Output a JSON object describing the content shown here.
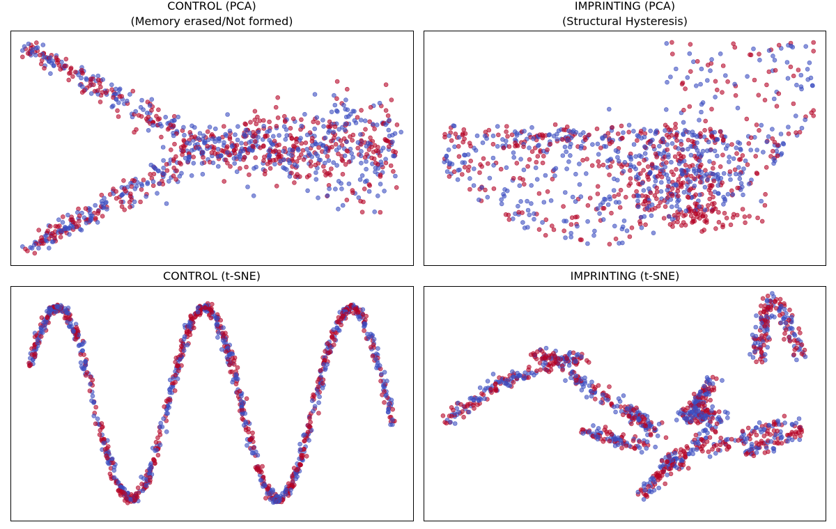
{
  "colors": {
    "red": "#b40426",
    "blue": "#3b4cc0"
  },
  "chart_data": [
    {
      "type": "scatter",
      "title": "CONTROL (PCA)",
      "subtitle": "(Memory erased/Not formed)",
      "xlabel": "",
      "ylabel": "",
      "axes": "hidden",
      "xlim": [
        0,
        100
      ],
      "ylim": [
        0,
        100
      ],
      "series": [
        {
          "name": "class-blue",
          "color": "#3b4cc0",
          "n": 520,
          "shape": "chevron"
        },
        {
          "name": "class-red",
          "color": "#b40426",
          "n": 520,
          "shape": "chevron"
        }
      ]
    },
    {
      "type": "scatter",
      "title": "IMPRINTING (PCA)",
      "subtitle": "(Structural Hysteresis)",
      "xlabel": "",
      "ylabel": "",
      "axes": "hidden",
      "xlim": [
        0,
        100
      ],
      "ylim": [
        0,
        100
      ],
      "series": [
        {
          "name": "class-blue",
          "color": "#3b4cc0",
          "n": 520,
          "shape": "bowl"
        },
        {
          "name": "class-red",
          "color": "#b40426",
          "n": 520,
          "shape": "bowl"
        }
      ]
    },
    {
      "type": "scatter",
      "title": "CONTROL (t-SNE)",
      "xlabel": "",
      "ylabel": "",
      "axes": "hidden",
      "xlim": [
        0,
        100
      ],
      "ylim": [
        0,
        100
      ],
      "series": [
        {
          "name": "class-blue",
          "color": "#3b4cc0",
          "n": 560,
          "shape": "wave"
        },
        {
          "name": "class-red",
          "color": "#b40426",
          "n": 560,
          "shape": "wave"
        }
      ]
    },
    {
      "type": "scatter",
      "title": "IMPRINTING (t-SNE)",
      "xlabel": "",
      "ylabel": "",
      "axes": "hidden",
      "xlim": [
        0,
        100
      ],
      "ylim": [
        0,
        100
      ],
      "series": [
        {
          "name": "class-blue",
          "color": "#3b4cc0",
          "n": 560,
          "shape": "fragments"
        },
        {
          "name": "class-red",
          "color": "#b40426",
          "n": 560,
          "shape": "fragments"
        }
      ]
    }
  ]
}
